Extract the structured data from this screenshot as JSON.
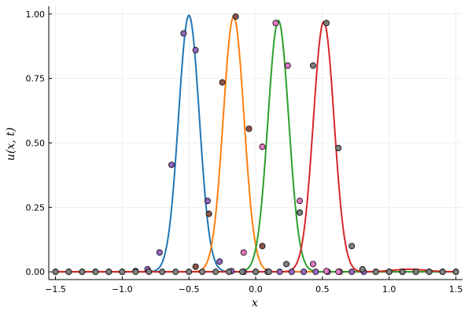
{
  "chart_data": {
    "type": "line",
    "title": "",
    "xlabel": "x",
    "ylabel": "u(x, t)",
    "xlim": [
      -1.55,
      1.55
    ],
    "ylim": [
      -0.03,
      1.03
    ],
    "xticks": [
      -1.5,
      -1.0,
      -0.5,
      0.0,
      0.5,
      1.0,
      1.5
    ],
    "xtick_labels": [
      "−1.5",
      "−1.0",
      "−0.5",
      "0.0",
      "0.5",
      "1.0",
      "1.5"
    ],
    "yticks": [
      0.0,
      0.25,
      0.5,
      0.75,
      1.0
    ],
    "ytick_labels": [
      "0.00",
      "0.25",
      "0.50",
      "0.75",
      "1.00"
    ],
    "grid": true,
    "legend": "none",
    "series": [
      {
        "kind": "line",
        "color": "#1f77b4",
        "peak_x": -0.5,
        "peak_y": 0.995,
        "width": 0.11
      },
      {
        "kind": "line",
        "color": "#ff7f0e",
        "peak_x": -0.165,
        "peak_y": 0.99,
        "width": 0.11
      },
      {
        "kind": "line",
        "color": "#2ca02c",
        "peak_x": 0.17,
        "peak_y": 0.975,
        "width": 0.11
      },
      {
        "kind": "line",
        "color": "#d62728",
        "peak_x": 0.51,
        "peak_y": 0.97,
        "width": 0.11,
        "bump_x": 1.15,
        "bump_y": 0.01,
        "bump_width": 0.18
      }
    ],
    "points": [
      {
        "color": "#9467bd",
        "x": [
          -1.5,
          -1.4,
          -1.3,
          -1.2,
          -1.1,
          -1.0,
          -0.9,
          -0.81,
          -0.72,
          -0.63,
          -0.54,
          -0.45,
          -0.36,
          -0.27,
          -0.18,
          -0.09,
          0.0,
          0.09,
          0.18,
          0.27,
          0.36,
          0.45,
          0.54,
          0.63,
          0.72,
          0.81,
          0.9,
          1.0,
          1.1,
          1.2,
          1.3,
          1.4,
          1.5
        ],
        "y": [
          0,
          0,
          0,
          0,
          0,
          0,
          0.003,
          0.01,
          0.075,
          0.415,
          0.925,
          0.86,
          0.275,
          0.04,
          0.003,
          0,
          0,
          0,
          0,
          0,
          0,
          0,
          0,
          0,
          0,
          0,
          0,
          0,
          0,
          0,
          0,
          0,
          0
        ]
      },
      {
        "color": "#8c564b",
        "x": [
          -0.45,
          -0.35,
          -0.25,
          -0.15,
          -0.05,
          0.05
        ],
        "y": [
          0.02,
          0.225,
          0.735,
          0.99,
          0.555,
          0.1
        ]
      },
      {
        "color": "#e377c2",
        "x": [
          -0.09,
          0.05,
          0.15,
          0.24,
          0.33,
          0.43,
          0.53,
          0.62
        ],
        "y": [
          0.075,
          0.485,
          0.965,
          0.8,
          0.275,
          0.03,
          0.003,
          0
        ]
      },
      {
        "color": "#7f7f7f",
        "x": [
          -1.5,
          -1.4,
          -1.3,
          -1.2,
          -1.1,
          -1.0,
          -0.9,
          -0.8,
          -0.7,
          -0.6,
          -0.5,
          -0.4,
          -0.3,
          -0.2,
          -0.1,
          0.0,
          0.1,
          0.23,
          0.33,
          0.43,
          0.53,
          0.62,
          0.72,
          0.8,
          0.9,
          1.0,
          1.1,
          1.2,
          1.3,
          1.4,
          1.5
        ],
        "y": [
          0,
          0,
          0,
          0,
          0,
          0,
          0,
          0,
          0,
          0,
          0,
          0,
          0,
          0,
          0,
          0,
          0,
          0.03,
          0.23,
          0.8,
          0.965,
          0.48,
          0.1,
          0.01,
          0,
          0,
          0,
          0,
          0,
          0,
          0
        ]
      }
    ]
  }
}
